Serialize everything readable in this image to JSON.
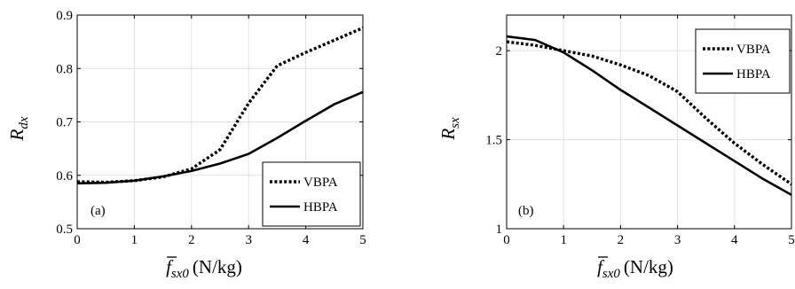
{
  "chart_data": [
    {
      "type": "line",
      "panel_label": "(a)",
      "ylabel": {
        "main": "R",
        "sub": "dx"
      },
      "xlabel": {
        "symbol": "f",
        "sub": "sx0",
        "unit": "(N/kg)"
      },
      "xlim": [
        0,
        5
      ],
      "ylim": [
        0.5,
        0.9
      ],
      "xticks": [
        0,
        1,
        2,
        3,
        4,
        5
      ],
      "yticks": [
        0.5,
        0.6,
        0.7,
        0.8,
        0.9
      ],
      "ytick_labels": [
        "0.5",
        "0.6",
        "0.7",
        "0.8",
        "0.9"
      ],
      "grid": true,
      "legend_position": "bottom-right",
      "series": [
        {
          "name": "VBPA",
          "style": "dotted",
          "x": [
            0,
            0.5,
            1,
            1.5,
            2,
            2.5,
            3,
            3.5,
            4,
            4.5,
            5
          ],
          "y": [
            0.588,
            0.587,
            0.59,
            0.597,
            0.612,
            0.648,
            0.735,
            0.805,
            0.83,
            0.853,
            0.876
          ]
        },
        {
          "name": "HBPA",
          "style": "solid",
          "x": [
            0,
            0.5,
            1,
            1.5,
            2,
            2.5,
            3,
            3.5,
            4,
            4.5,
            5
          ],
          "y": [
            0.585,
            0.586,
            0.59,
            0.598,
            0.608,
            0.622,
            0.64,
            0.67,
            0.702,
            0.733,
            0.756
          ]
        }
      ]
    },
    {
      "type": "line",
      "panel_label": "(b)",
      "ylabel": {
        "main": "R",
        "sub": "sx"
      },
      "xlabel": {
        "symbol": "f",
        "sub": "sx0",
        "unit": "(N/kg)"
      },
      "xlim": [
        0,
        5
      ],
      "ylim": [
        1,
        2.2
      ],
      "xticks": [
        0,
        1,
        2,
        3,
        4,
        5
      ],
      "yticks": [
        1,
        1.5,
        2
      ],
      "ytick_labels": [
        "1",
        "1.5",
        "2"
      ],
      "grid": true,
      "legend_position": "top-right",
      "series": [
        {
          "name": "VBPA",
          "style": "dotted",
          "x": [
            0,
            0.5,
            1,
            1.5,
            2,
            2.5,
            3,
            3.5,
            4,
            4.5,
            5
          ],
          "y": [
            2.05,
            2.03,
            2.0,
            1.97,
            1.92,
            1.86,
            1.77,
            1.62,
            1.48,
            1.36,
            1.25
          ]
        },
        {
          "name": "HBPA",
          "style": "solid",
          "x": [
            0,
            0.5,
            1,
            1.5,
            2,
            2.5,
            3,
            3.5,
            4,
            4.5,
            5
          ],
          "y": [
            2.08,
            2.06,
            1.99,
            1.89,
            1.78,
            1.68,
            1.58,
            1.48,
            1.38,
            1.28,
            1.19
          ]
        }
      ]
    }
  ]
}
